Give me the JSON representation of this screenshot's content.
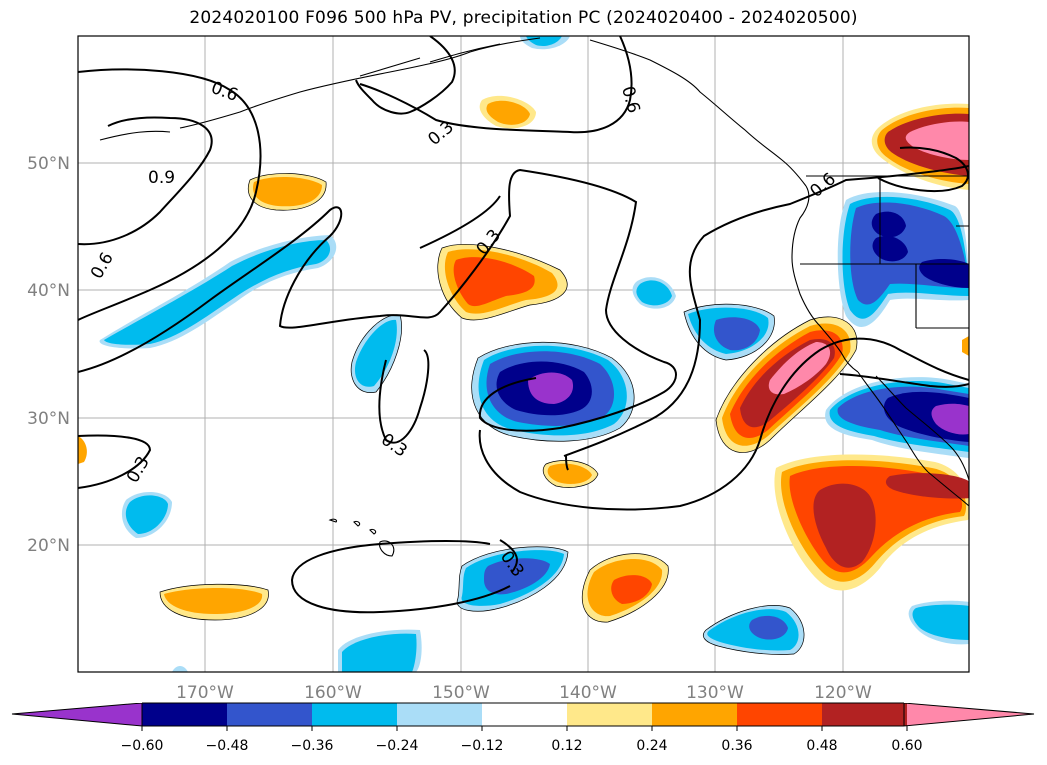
{
  "title": "2024020100 F096 500 hPa PV, precipitation PC (2024020400 - 2024020500)",
  "map": {
    "lon_ticks": [
      "170°W",
      "160°W",
      "150°W",
      "140°W",
      "130°W",
      "120°W"
    ],
    "lat_ticks": [
      "50°N",
      "40°N",
      "30°N",
      "20°N"
    ],
    "contour_labels": [
      "0.6",
      "0.9",
      "0.6",
      "0.3",
      "0.3",
      "0.6",
      "0.6",
      "0.3",
      "0.3",
      "0.3"
    ]
  },
  "colorbar": {
    "ticks": [
      "−0.60",
      "−0.48",
      "−0.36",
      "−0.24",
      "−0.12",
      "0.12",
      "0.24",
      "0.36",
      "0.48",
      "0.60"
    ],
    "colors": [
      "#9933cc",
      "#00008b",
      "#3355cc",
      "#00bbee",
      "#aaddf7",
      "#ffffff",
      "#ffe88a",
      "#ffa500",
      "#ff4500",
      "#b22222",
      "#ff88aa"
    ]
  }
}
